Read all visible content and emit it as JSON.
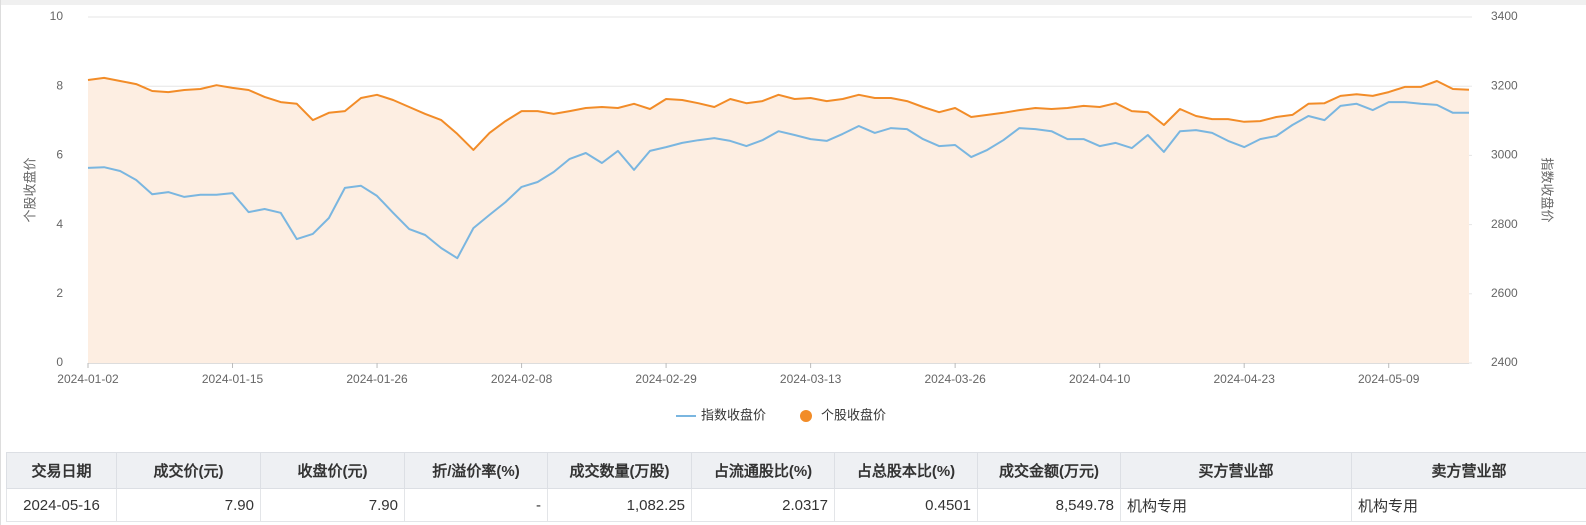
{
  "chart_data": {
    "type": "line",
    "y_label": "个股收盘价",
    "y2_label": "指数收盘价",
    "categories": [
      "2024-01-02",
      null,
      null,
      null,
      null,
      null,
      null,
      null,
      null,
      "2024-01-15",
      null,
      null,
      null,
      null,
      null,
      null,
      null,
      null,
      "2024-01-26",
      null,
      null,
      null,
      null,
      null,
      null,
      null,
      null,
      "2024-02-08",
      null,
      null,
      null,
      null,
      null,
      null,
      null,
      null,
      "2024-02-29",
      null,
      null,
      null,
      null,
      null,
      null,
      null,
      null,
      "2024-03-13",
      null,
      null,
      null,
      null,
      null,
      null,
      null,
      null,
      "2024-03-26",
      null,
      null,
      null,
      null,
      null,
      null,
      null,
      null,
      "2024-04-10",
      null,
      null,
      null,
      null,
      null,
      null,
      null,
      null,
      "2024-04-23",
      null,
      null,
      null,
      null,
      null,
      null,
      null,
      null,
      "2024-05-09",
      null,
      null,
      null,
      null,
      null
    ],
    "series": [
      {
        "name": "指数收盘价",
        "color": "#7ab6e0",
        "axis": "y2",
        "legend_symbol": "line",
        "values": [
          2964,
          2966,
          2955,
          2929,
          2888,
          2894,
          2880,
          2886,
          2886,
          2891,
          2836,
          2845,
          2834,
          2758,
          2773,
          2819,
          2906,
          2912,
          2883,
          2834,
          2787,
          2770,
          2732,
          2703,
          2790,
          2828,
          2865,
          2909,
          2923,
          2952,
          2990,
          3007,
          2978,
          3013,
          2958,
          3013,
          3024,
          3036,
          3044,
          3050,
          3042,
          3027,
          3044,
          3070,
          3059,
          3047,
          3042,
          3062,
          3085,
          3065,
          3079,
          3076,
          3047,
          3027,
          3030,
          2995,
          3016,
          3044,
          3079,
          3076,
          3070,
          3047,
          3047,
          3027,
          3036,
          3021,
          3059,
          3010,
          3070,
          3073,
          3065,
          3042,
          3024,
          3047,
          3056,
          3088,
          3114,
          3102,
          3143,
          3149,
          3131,
          3154,
          3154,
          3149,
          3146,
          3123,
          3123
        ]
      },
      {
        "name": "个股收盘价",
        "color": "#f28c28",
        "area_color": "#fdeee2",
        "axis": "y",
        "legend_symbol": "circle",
        "values": [
          8.18,
          8.24,
          8.15,
          8.06,
          7.86,
          7.83,
          7.89,
          7.92,
          8.03,
          7.95,
          7.89,
          7.69,
          7.54,
          7.49,
          7.02,
          7.23,
          7.28,
          7.66,
          7.75,
          7.6,
          7.4,
          7.2,
          7.02,
          6.62,
          6.16,
          6.65,
          6.99,
          7.28,
          7.28,
          7.2,
          7.28,
          7.37,
          7.4,
          7.37,
          7.49,
          7.34,
          7.63,
          7.6,
          7.51,
          7.4,
          7.63,
          7.51,
          7.57,
          7.75,
          7.63,
          7.66,
          7.57,
          7.63,
          7.75,
          7.66,
          7.66,
          7.57,
          7.4,
          7.25,
          7.37,
          7.11,
          7.17,
          7.23,
          7.31,
          7.37,
          7.34,
          7.37,
          7.43,
          7.4,
          7.51,
          7.28,
          7.25,
          6.88,
          7.34,
          7.14,
          7.05,
          7.05,
          6.97,
          6.99,
          7.11,
          7.17,
          7.49,
          7.51,
          7.72,
          7.77,
          7.72,
          7.83,
          7.98,
          7.98,
          8.15,
          7.92,
          7.9
        ]
      }
    ],
    "ylim": [
      0,
      10
    ],
    "yticks": [
      0,
      2,
      4,
      6,
      8,
      10
    ],
    "y2lim": [
      2400,
      3400
    ],
    "y2ticks": [
      2400,
      2600,
      2800,
      3000,
      3200,
      3400
    ],
    "grid": true,
    "legend": "bottom"
  },
  "table": {
    "headers": [
      "交易日期",
      "成交价(元)",
      "收盘价(元)",
      "折/溢价率(%)",
      "成交数量(万股)",
      "占流通股比(%)",
      "占总股本比(%)",
      "成交金额(万元)",
      "买方营业部",
      "卖方营业部"
    ],
    "rows": [
      [
        "2024-05-16",
        "7.90",
        "7.90",
        "-",
        "1,082.25",
        "2.0317",
        "0.4501",
        "8,549.78",
        "机构专用",
        "机构专用"
      ]
    ]
  }
}
